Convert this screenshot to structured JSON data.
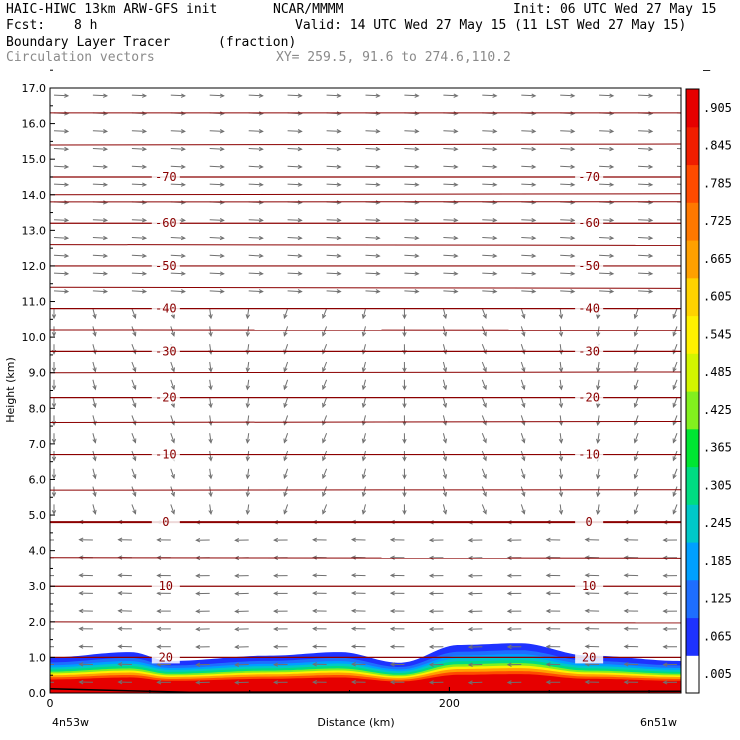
{
  "header": {
    "model": "HAIC-HIWC 13km ARW-GFS init",
    "org": "NCAR/MMMM",
    "init": "Init: 06 UTC Wed 27 May 15",
    "fcst_label": "Fcst:",
    "fcst_value": "8 h",
    "valid": "Valid: 14 UTC Wed 27 May 15 (11 LST Wed 27 May 15)",
    "field1_name": "Boundary Layer Tracer",
    "field1_units": "(fraction)",
    "field2_name": "Circulation vectors",
    "xsect": "XY= 259.5, 91.6 to 274.6,110.2"
  },
  "axes": {
    "ylabel": "Height (km)",
    "xlabel": "Distance (km)",
    "left_location": "4n53w",
    "right_location": "6n51w",
    "x_ticks": [
      "0",
      "200"
    ],
    "y_ticks": [
      "0.0",
      "1.0",
      "2.0",
      "3.0",
      "4.0",
      "5.0",
      "6.0",
      "7.0",
      "8.0",
      "9.0",
      "10.0",
      "11.0",
      "12.0",
      "13.0",
      "14.0",
      "15.0",
      "16.0",
      "17.0"
    ]
  },
  "colorbar": {
    "labels": [
      ".005",
      ".065",
      ".125",
      ".185",
      ".245",
      ".305",
      ".365",
      ".425",
      ".485",
      ".545",
      ".605",
      ".665",
      ".725",
      ".785",
      ".845",
      ".905",
      "–"
    ],
    "colors": [
      "#ffffff",
      "#1e32ff",
      "#1e6eff",
      "#00a0ff",
      "#00c8c8",
      "#00dc82",
      "#00e632",
      "#82f01e",
      "#d2f500",
      "#fff000",
      "#ffd200",
      "#ffa000",
      "#ff7800",
      "#ff4b00",
      "#f01e00",
      "#e60000"
    ]
  },
  "chart_data": {
    "type": "cross-section",
    "title": "Boundary Layer Tracer",
    "xlabel": "Distance (km)",
    "ylabel": "Height (km)",
    "xlim": [
      0,
      316
    ],
    "ylim": [
      0,
      17
    ],
    "temperature_contours": [
      {
        "label": "-70",
        "height_km": 14.5
      },
      {
        "label": "-60",
        "height_km": 13.2
      },
      {
        "label": "-50",
        "height_km": 12.0
      },
      {
        "label": "-40",
        "height_km": 10.8
      },
      {
        "label": "-30",
        "height_km": 9.6
      },
      {
        "label": "-20",
        "height_km": 8.3
      },
      {
        "label": "-10",
        "height_km": 6.7
      },
      {
        "label": "0",
        "height_km": 4.8
      },
      {
        "label": "10",
        "height_km": 3.0
      },
      {
        "label": "20",
        "height_km": 1.0
      }
    ],
    "tracer_top_km": [
      {
        "x": 0,
        "z": 1.0
      },
      {
        "x": 40,
        "z": 1.15
      },
      {
        "x": 60,
        "z": 0.9
      },
      {
        "x": 110,
        "z": 1.05
      },
      {
        "x": 145,
        "z": 1.15
      },
      {
        "x": 175,
        "z": 0.85
      },
      {
        "x": 205,
        "z": 1.35
      },
      {
        "x": 235,
        "z": 1.4
      },
      {
        "x": 270,
        "z": 1.05
      },
      {
        "x": 316,
        "z": 0.9
      }
    ]
  }
}
